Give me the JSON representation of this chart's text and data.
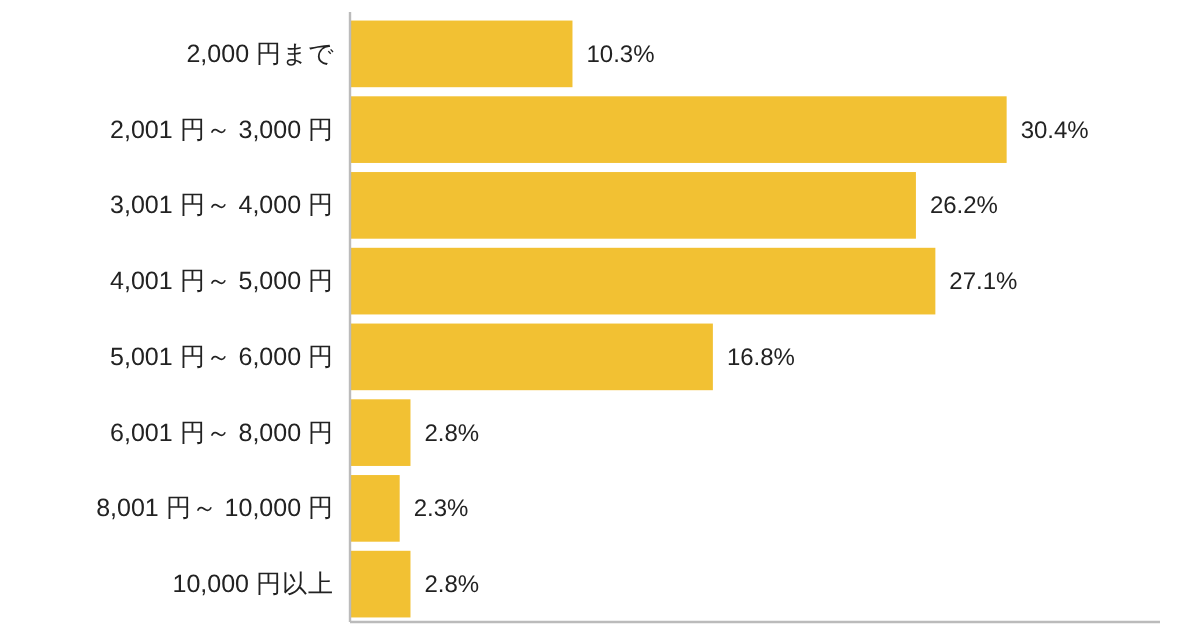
{
  "chart_data": {
    "type": "bar",
    "orientation": "horizontal",
    "categories": [
      "2,000 円まで",
      "2,001 円～ 3,000 円",
      "3,001 円～ 4,000 円",
      "4,001 円～ 5,000 円",
      "5,001 円～ 6,000 円",
      "6,001 円～ 8,000 円",
      "8,001 円～ 10,000 円",
      "10,000 円以上"
    ],
    "values": [
      10.3,
      30.4,
      26.2,
      27.1,
      16.8,
      2.8,
      2.3,
      2.8
    ],
    "value_labels": [
      "10.3%",
      "30.4%",
      "26.2%",
      "27.1%",
      "16.8%",
      "2.8%",
      "2.3%",
      "2.8%"
    ],
    "color": "#f2c133",
    "xlim": [
      0,
      37.5
    ]
  }
}
